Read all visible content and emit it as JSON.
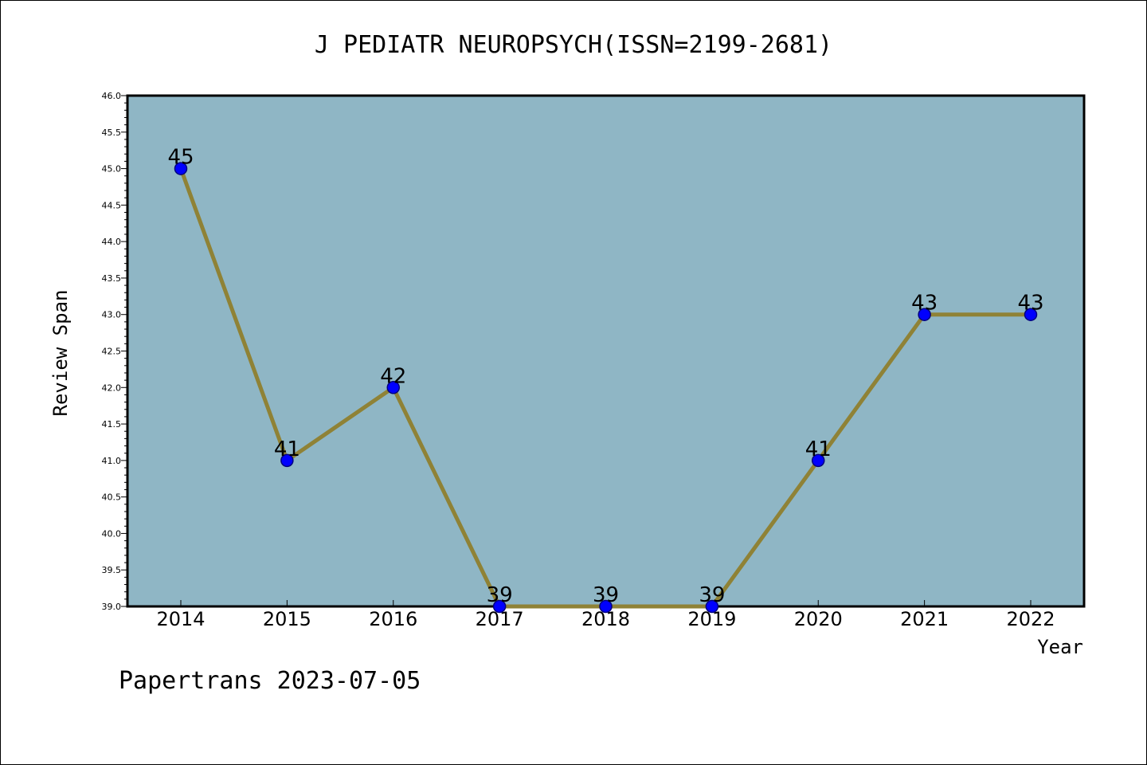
{
  "chart_data": {
    "type": "line",
    "title": "J PEDIATR NEUROPSYCH(ISSN=2199-2681)",
    "xlabel": "Year",
    "ylabel": "Review Span",
    "categories": [
      "2014",
      "2015",
      "2016",
      "2017",
      "2018",
      "2019",
      "2020",
      "2021",
      "2022"
    ],
    "values": [
      45,
      41,
      42,
      39,
      39,
      39,
      41,
      43,
      43
    ],
    "data_labels": [
      "45",
      "41",
      "42",
      "39",
      "39",
      "39",
      "41",
      "43",
      "43"
    ],
    "ylim": [
      39.0,
      46.0
    ],
    "yticks": [
      "39.0",
      "39.5",
      "40.0",
      "40.5",
      "41.0",
      "41.5",
      "42.0",
      "42.5",
      "43.0",
      "43.5",
      "44.0",
      "44.5",
      "45.0",
      "45.5",
      "46.0"
    ],
    "grid": false,
    "legend": "none",
    "colors": {
      "plot_background": "#8fb6c5",
      "line": "#8f8236",
      "marker_fill": "#0000ff",
      "marker_edge": "#000080"
    }
  },
  "footer": {
    "text": "Papertrans 2023-07-05"
  }
}
